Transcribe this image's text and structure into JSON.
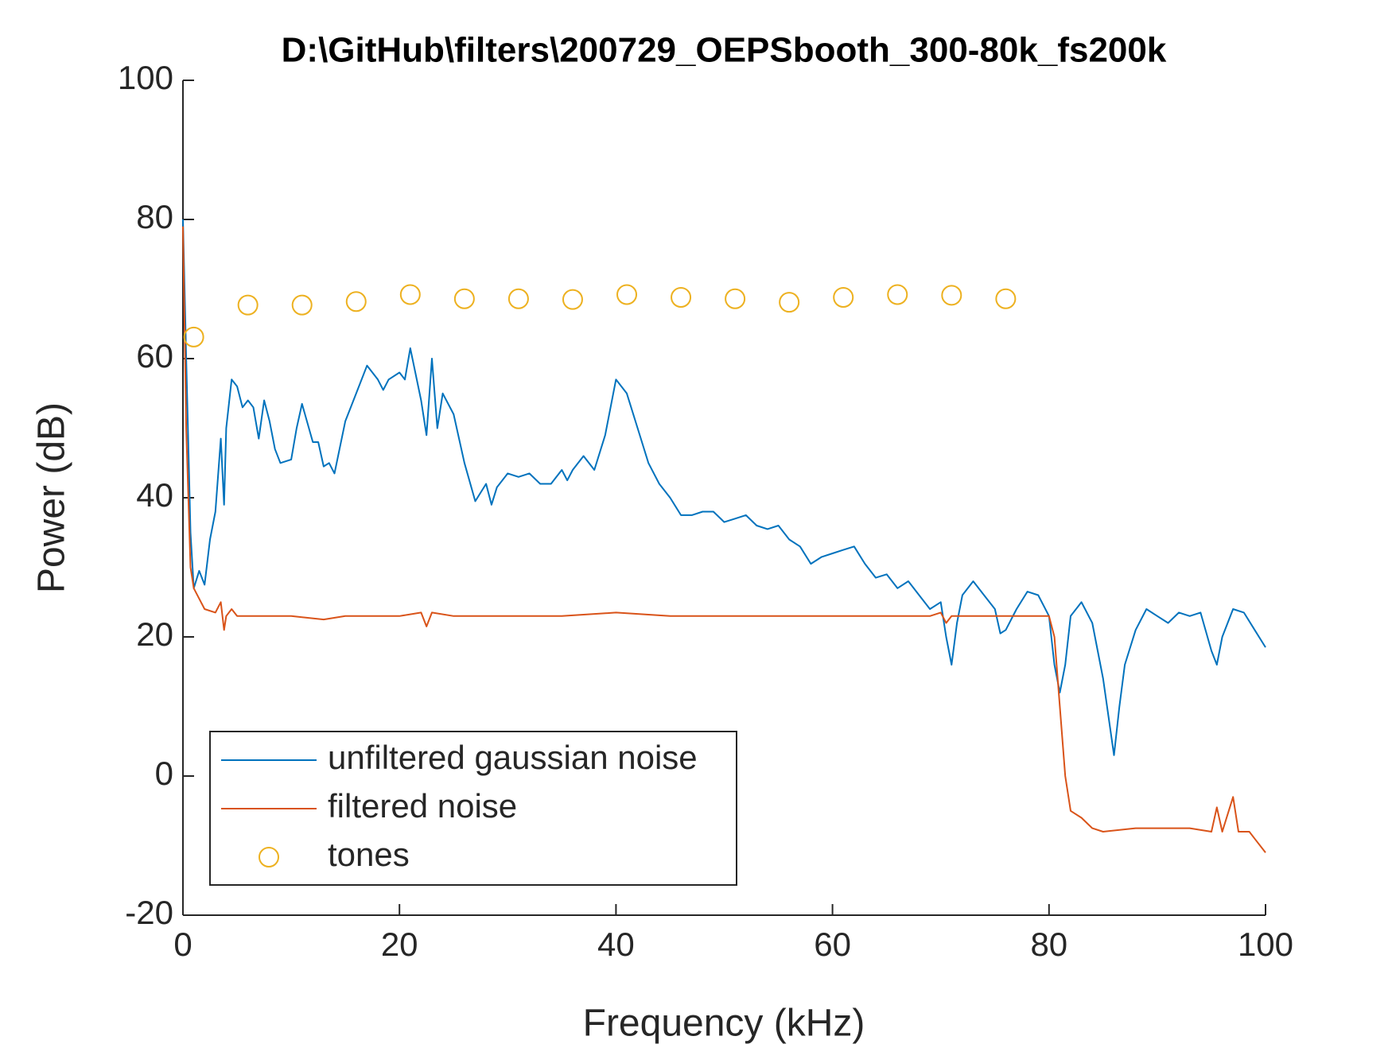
{
  "chart_data": {
    "type": "line",
    "title": "D:\\GitHub\\filters\\200729_OEPSbooth_300-80k_fs200k",
    "xlabel": "Frequency (kHz)",
    "ylabel": "Power (dB)",
    "xlim": [
      0,
      100
    ],
    "ylim": [
      -20,
      100
    ],
    "xticks": [
      0,
      20,
      40,
      60,
      80,
      100
    ],
    "yticks": [
      -20,
      0,
      20,
      40,
      60,
      80,
      100
    ],
    "grid": false,
    "legend": "lower left",
    "series": [
      {
        "name": "unfiltered gaussian noise",
        "color": "#0072bd",
        "x": [
          0,
          0.3,
          0.7,
          1,
          1.5,
          2,
          2.5,
          3,
          3.5,
          3.8,
          4,
          4.5,
          5,
          5.5,
          6,
          6.5,
          7,
          7.5,
          8,
          8.5,
          9,
          10,
          10.5,
          11,
          12,
          12.5,
          13,
          13.5,
          14,
          15,
          16,
          17,
          18,
          18.5,
          19,
          20,
          20.5,
          21,
          22,
          22.5,
          23,
          23.5,
          24,
          25,
          26,
          27,
          28,
          28.5,
          29,
          30,
          31,
          32,
          33,
          34,
          35,
          35.5,
          36,
          37,
          38,
          39,
          40,
          41,
          42,
          43,
          44,
          45,
          46,
          47,
          48,
          49,
          50,
          51,
          52,
          53,
          54,
          55,
          56,
          57,
          58,
          59,
          60,
          61,
          62,
          63,
          64,
          65,
          66,
          67,
          68,
          69,
          70,
          70.5,
          71,
          71.5,
          72,
          73,
          74,
          75,
          75.5,
          76,
          77,
          78,
          79,
          80,
          80.5,
          81,
          81.5,
          82,
          83,
          84,
          85,
          86,
          86.5,
          87,
          88,
          89,
          90,
          91,
          92,
          93,
          94,
          95,
          95.5,
          96,
          97,
          98,
          99,
          100
        ],
        "values": [
          80,
          60,
          35,
          27,
          29.5,
          27.5,
          34,
          38,
          48.5,
          39,
          50,
          57,
          56,
          53,
          54,
          53,
          48.5,
          54,
          51,
          47,
          45,
          45.5,
          50,
          53.5,
          48,
          48,
          44.5,
          45,
          43.5,
          51,
          55,
          59,
          57,
          55.5,
          57,
          58,
          57,
          61.5,
          54,
          49,
          60,
          50,
          55,
          52,
          45,
          39.5,
          42,
          39,
          41.5,
          43.5,
          43,
          43.5,
          42,
          42,
          44,
          42.5,
          44,
          46,
          44,
          49,
          57,
          55,
          50,
          45,
          42,
          40,
          37.5,
          37.5,
          38,
          38,
          36.5,
          37,
          37.5,
          36,
          35.5,
          36,
          34,
          33,
          30.5,
          31.5,
          32,
          32.5,
          33,
          30.5,
          28.5,
          29,
          27,
          28,
          26,
          24,
          25,
          20,
          16,
          22,
          26,
          28,
          26,
          24,
          20.5,
          21,
          24,
          26.5,
          26,
          23,
          16,
          12,
          16,
          23,
          25,
          22,
          14,
          3,
          10,
          16,
          21,
          24,
          23,
          22,
          23.5,
          23,
          23.5,
          18,
          16,
          20,
          24,
          23.5,
          21,
          18.5
        ]
      },
      {
        "name": "filtered noise",
        "color": "#d95319",
        "x": [
          0,
          0.3,
          0.7,
          1,
          2,
          3,
          3.5,
          3.8,
          4,
          4.5,
          5,
          7,
          10,
          13,
          15,
          20,
          22,
          22.5,
          23,
          25,
          30,
          35,
          40,
          45,
          50,
          55,
          60,
          65,
          69,
          70,
          70.5,
          71,
          75,
          80,
          80.5,
          81,
          81.5,
          82,
          83,
          84,
          85,
          88,
          90,
          93,
          95,
          95.5,
          96,
          97,
          97.5,
          98.5,
          99,
          100
        ],
        "values": [
          79,
          50,
          30,
          27,
          24,
          23.5,
          25,
          21,
          23,
          24,
          23,
          23,
          23,
          22.5,
          23,
          23,
          23.5,
          21.5,
          23.5,
          23,
          23,
          23,
          23.5,
          23,
          23,
          23,
          23,
          23,
          23,
          23.5,
          22,
          23,
          23,
          23,
          20,
          10,
          0,
          -5,
          -6,
          -7.5,
          -8,
          -7.5,
          -7.5,
          -7.5,
          -8,
          -4.5,
          -8,
          -3,
          -8,
          -8,
          -9,
          -11
        ]
      },
      {
        "name": "tones",
        "color": "#edb120",
        "marker": "circle",
        "x": [
          1,
          6,
          11,
          16,
          21,
          26,
          31,
          36,
          41,
          46,
          51,
          56,
          61,
          66,
          71,
          76
        ],
        "values": [
          63.1,
          67.7,
          67.7,
          68.2,
          69.2,
          68.6,
          68.6,
          68.5,
          69.2,
          68.8,
          68.6,
          68.1,
          68.8,
          69.2,
          69.1,
          68.6
        ]
      }
    ]
  }
}
